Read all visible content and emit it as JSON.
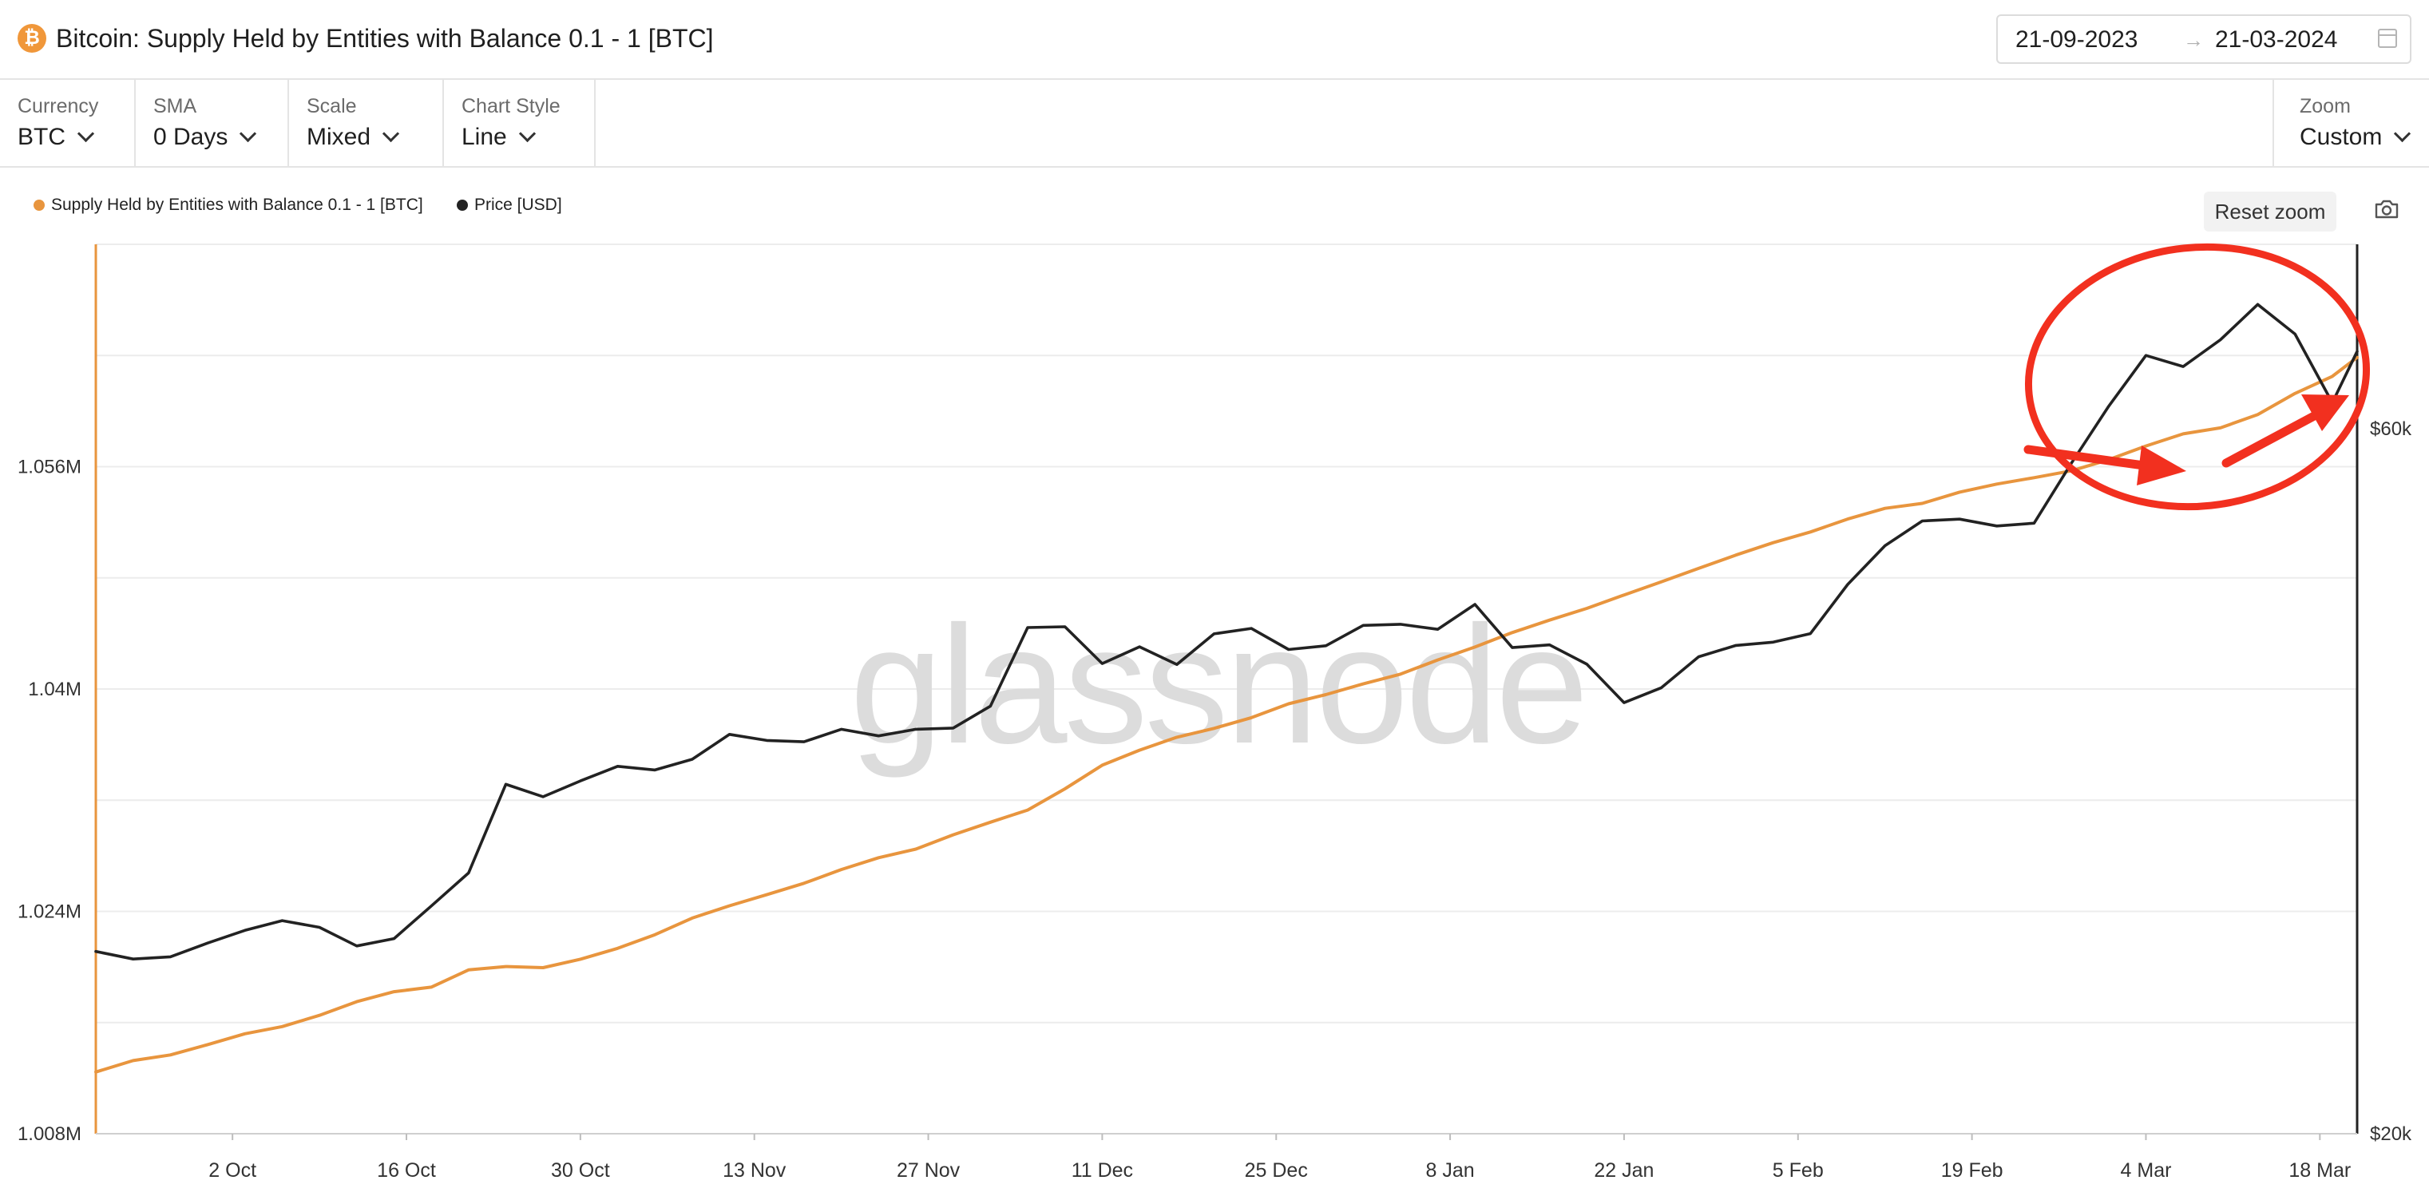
{
  "header": {
    "title": "Bitcoin: Supply Held by Entities with Balance 0.1 - 1 [BTC]",
    "coin_badge": "₿",
    "date_from": "21-09-2023",
    "date_arrow": "→",
    "date_to": "21-03-2024"
  },
  "controls": {
    "currency": {
      "label": "Currency",
      "value": "BTC"
    },
    "sma": {
      "label": "SMA",
      "value": "0 Days"
    },
    "scale": {
      "label": "Scale",
      "value": "Mixed"
    },
    "chart_style": {
      "label": "Chart Style",
      "value": "Line"
    },
    "zoom": {
      "label": "Zoom",
      "value": "Custom"
    }
  },
  "actions": {
    "reset_zoom": "Reset zoom",
    "screenshot_icon": "camera-icon"
  },
  "watermark": "glassnode",
  "colors": {
    "supply": "#e8953e",
    "price": "#222222",
    "annotation": "#f2301f",
    "watermark": "#dcdcdc"
  },
  "chart_data": {
    "type": "line",
    "x_range": [
      "2023-09-21",
      "2024-03-21"
    ],
    "x_ticks": [
      {
        "date": "2023-10-02",
        "label": "2 Oct"
      },
      {
        "date": "2023-10-16",
        "label": "16 Oct"
      },
      {
        "date": "2023-10-30",
        "label": "30 Oct"
      },
      {
        "date": "2023-11-13",
        "label": "13 Nov"
      },
      {
        "date": "2023-11-27",
        "label": "27 Nov"
      },
      {
        "date": "2023-12-11",
        "label": "11 Dec"
      },
      {
        "date": "2023-12-25",
        "label": "25 Dec"
      },
      {
        "date": "2024-01-08",
        "label": "8 Jan"
      },
      {
        "date": "2024-01-22",
        "label": "22 Jan"
      },
      {
        "date": "2024-02-05",
        "label": "5 Feb"
      },
      {
        "date": "2024-02-19",
        "label": "19 Feb"
      },
      {
        "date": "2024-03-04",
        "label": "4 Mar"
      },
      {
        "date": "2024-03-18",
        "label": "18 Mar"
      }
    ],
    "y_left": {
      "scale": "linear",
      "min": 1008000,
      "max": 1072000,
      "ticks": [
        1008000,
        1024000,
        1040000,
        1056000
      ],
      "tick_labels": [
        "1.008M",
        "1.024M",
        "1.04M",
        "1.056M"
      ]
    },
    "y_right": {
      "scale": "log",
      "min": 20000,
      "max": 80000,
      "ticks": [
        20000,
        60000
      ],
      "tick_labels": [
        "$20k",
        "$60k"
      ]
    },
    "grid": true,
    "legend_position": "top-left",
    "series": [
      {
        "name": "Supply Held by Entities with Balance 0.1 - 1 [BTC]",
        "axis": "left",
        "color": "#e8953e",
        "points": [
          [
            "2023-09-21",
            1012440
          ],
          [
            "2023-09-24",
            1013260
          ],
          [
            "2023-09-27",
            1013670
          ],
          [
            "2023-09-30",
            1014410
          ],
          [
            "2023-10-03",
            1015190
          ],
          [
            "2023-10-06",
            1015710
          ],
          [
            "2023-10-09",
            1016520
          ],
          [
            "2023-10-12",
            1017500
          ],
          [
            "2023-10-15",
            1018220
          ],
          [
            "2023-10-18",
            1018550
          ],
          [
            "2023-10-21",
            1019790
          ],
          [
            "2023-10-24",
            1020030
          ],
          [
            "2023-10-27",
            1019950
          ],
          [
            "2023-10-30",
            1020560
          ],
          [
            "2023-11-02",
            1021340
          ],
          [
            "2023-11-05",
            1022320
          ],
          [
            "2023-11-08",
            1023520
          ],
          [
            "2023-11-11",
            1024400
          ],
          [
            "2023-11-14",
            1025200
          ],
          [
            "2023-11-17",
            1026020
          ],
          [
            "2023-11-20",
            1027010
          ],
          [
            "2023-11-23",
            1027860
          ],
          [
            "2023-11-26",
            1028480
          ],
          [
            "2023-11-29",
            1029510
          ],
          [
            "2023-12-02",
            1030420
          ],
          [
            "2023-12-05",
            1031290
          ],
          [
            "2023-12-08",
            1032820
          ],
          [
            "2023-12-11",
            1034520
          ],
          [
            "2023-12-14",
            1035600
          ],
          [
            "2023-12-17",
            1036530
          ],
          [
            "2023-12-20",
            1037170
          ],
          [
            "2023-12-23",
            1037940
          ],
          [
            "2023-12-26",
            1038940
          ],
          [
            "2023-12-29",
            1039600
          ],
          [
            "2024-01-01",
            1040370
          ],
          [
            "2024-01-04",
            1041070
          ],
          [
            "2024-01-07",
            1042090
          ],
          [
            "2024-01-10",
            1043020
          ],
          [
            "2024-01-13",
            1044060
          ],
          [
            "2024-01-16",
            1044960
          ],
          [
            "2024-01-19",
            1045800
          ],
          [
            "2024-01-22",
            1046770
          ],
          [
            "2024-01-25",
            1047710
          ],
          [
            "2024-01-28",
            1048680
          ],
          [
            "2024-01-31",
            1049640
          ],
          [
            "2024-02-03",
            1050530
          ],
          [
            "2024-02-06",
            1051300
          ],
          [
            "2024-02-09",
            1052230
          ],
          [
            "2024-02-12",
            1053000
          ],
          [
            "2024-02-15",
            1053360
          ],
          [
            "2024-02-18",
            1054170
          ],
          [
            "2024-02-21",
            1054750
          ],
          [
            "2024-02-24",
            1055210
          ],
          [
            "2024-02-27",
            1055700
          ],
          [
            "2024-03-01",
            1056500
          ],
          [
            "2024-03-04",
            1057490
          ],
          [
            "2024-03-07",
            1058360
          ],
          [
            "2024-03-10",
            1058790
          ],
          [
            "2024-03-13",
            1059750
          ],
          [
            "2024-03-16",
            1061270
          ],
          [
            "2024-03-19",
            1062500
          ],
          [
            "2024-03-21",
            1063860
          ]
        ]
      },
      {
        "name": "Price [USD]",
        "axis": "right",
        "color": "#222222",
        "points": [
          [
            "2023-09-21",
            26570
          ],
          [
            "2023-09-24",
            26260
          ],
          [
            "2023-09-27",
            26350
          ],
          [
            "2023-09-30",
            26920
          ],
          [
            "2023-10-03",
            27460
          ],
          [
            "2023-10-06",
            27880
          ],
          [
            "2023-10-09",
            27590
          ],
          [
            "2023-10-12",
            26800
          ],
          [
            "2023-10-15",
            27110
          ],
          [
            "2023-10-18",
            28520
          ],
          [
            "2023-10-21",
            30030
          ],
          [
            "2023-10-24",
            34480
          ],
          [
            "2023-10-27",
            33820
          ],
          [
            "2023-10-30",
            34660
          ],
          [
            "2023-11-02",
            35460
          ],
          [
            "2023-11-05",
            35260
          ],
          [
            "2023-11-08",
            35850
          ],
          [
            "2023-11-11",
            37270
          ],
          [
            "2023-11-14",
            36920
          ],
          [
            "2023-11-17",
            36840
          ],
          [
            "2023-11-20",
            37570
          ],
          [
            "2023-11-23",
            37180
          ],
          [
            "2023-11-26",
            37570
          ],
          [
            "2023-11-29",
            37640
          ],
          [
            "2023-12-02",
            38950
          ],
          [
            "2023-12-05",
            44020
          ],
          [
            "2023-12-08",
            44080
          ],
          [
            "2023-12-11",
            41620
          ],
          [
            "2023-12-14",
            42720
          ],
          [
            "2023-12-17",
            41560
          ],
          [
            "2023-12-20",
            43590
          ],
          [
            "2023-12-23",
            43960
          ],
          [
            "2023-12-26",
            42540
          ],
          [
            "2023-12-29",
            42790
          ],
          [
            "2024-01-01",
            44170
          ],
          [
            "2024-01-04",
            44250
          ],
          [
            "2024-01-07",
            43900
          ],
          [
            "2024-01-10",
            45640
          ],
          [
            "2024-01-13",
            42670
          ],
          [
            "2024-01-16",
            42850
          ],
          [
            "2024-01-19",
            41580
          ],
          [
            "2024-01-22",
            39160
          ],
          [
            "2024-01-25",
            40080
          ],
          [
            "2024-01-28",
            42060
          ],
          [
            "2024-01-31",
            42810
          ],
          [
            "2024-02-03",
            43030
          ],
          [
            "2024-02-06",
            43610
          ],
          [
            "2024-02-09",
            47080
          ],
          [
            "2024-02-12",
            50010
          ],
          [
            "2024-02-15",
            51980
          ],
          [
            "2024-02-18",
            52130
          ],
          [
            "2024-02-21",
            51570
          ],
          [
            "2024-02-24",
            51800
          ],
          [
            "2024-02-27",
            56870
          ],
          [
            "2024-03-01",
            62150
          ],
          [
            "2024-03-04",
            67280
          ],
          [
            "2024-03-07",
            66120
          ],
          [
            "2024-03-10",
            68940
          ],
          [
            "2024-03-13",
            72840
          ],
          [
            "2024-03-16",
            69560
          ],
          [
            "2024-03-19",
            62500
          ],
          [
            "2024-03-21",
            67700
          ]
        ]
      }
    ]
  }
}
